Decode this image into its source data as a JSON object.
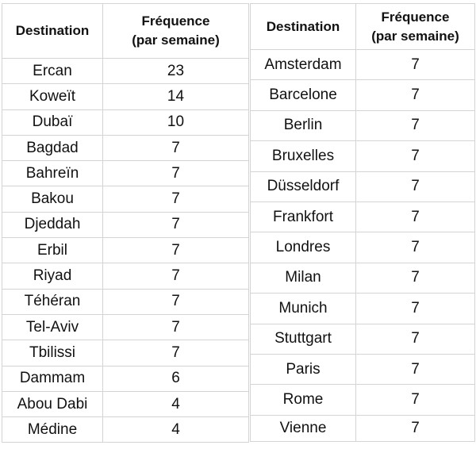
{
  "left_table": {
    "headers": [
      "Destination",
      "Fréquence",
      "(par semaine)"
    ],
    "rows": [
      [
        "Ercan",
        "23"
      ],
      [
        "Koweït",
        "14"
      ],
      [
        "Dubaï",
        "10"
      ],
      [
        "Bagdad",
        "7"
      ],
      [
        "Bahreïn",
        "7"
      ],
      [
        "Bakou",
        "7"
      ],
      [
        "Djeddah",
        "7"
      ],
      [
        "Erbil",
        "7"
      ],
      [
        "Riyad",
        "7"
      ],
      [
        "Téhéran",
        "7"
      ],
      [
        "Tel-Aviv",
        "7"
      ],
      [
        "Tbilissi",
        "7"
      ],
      [
        "Dammam",
        "6"
      ],
      [
        "Abou Dabi",
        "4"
      ],
      [
        "Médine",
        "4"
      ]
    ]
  },
  "right_table": {
    "headers": [
      "Destination",
      "Fréquence",
      "(par semaine)"
    ],
    "rows": [
      [
        "Amsterdam",
        "7"
      ],
      [
        "Barcelone",
        "7"
      ],
      [
        "Berlin",
        "7"
      ],
      [
        "Bruxelles",
        "7"
      ],
      [
        "Düsseldorf",
        "7"
      ],
      [
        "Frankfort",
        "7"
      ],
      [
        "Londres",
        "7"
      ],
      [
        "Milan",
        "7"
      ],
      [
        "Munich",
        "7"
      ],
      [
        "Stuttgart",
        "7"
      ],
      [
        "Paris",
        "7"
      ],
      [
        "Rome",
        "7"
      ],
      [
        "Vienne",
        "7"
      ]
    ]
  }
}
